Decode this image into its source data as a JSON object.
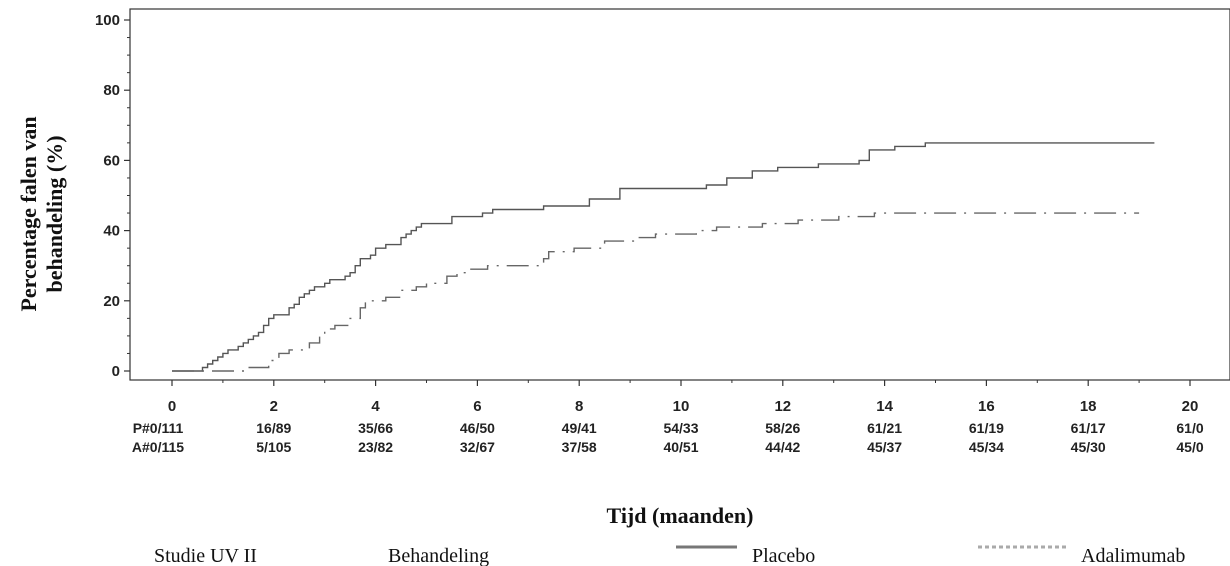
{
  "chart_data": {
    "type": "line",
    "ylabel_line1": "Percentage falen van",
    "ylabel_line2": "behandeling (%)",
    "xlabel": "Tijd (maanden)",
    "xlim": [
      0,
      20
    ],
    "ylim": [
      0,
      100
    ],
    "x_ticks": [
      "0",
      "2",
      "4",
      "6",
      "8",
      "10",
      "12",
      "14",
      "16",
      "18",
      "20"
    ],
    "y_ticks": [
      "0",
      "20",
      "40",
      "60",
      "80",
      "100"
    ],
    "risk_table": {
      "placebo": [
        "P#0/111",
        "16/89",
        "35/66",
        "46/50",
        "49/41",
        "54/33",
        "58/26",
        "61/21",
        "61/19",
        "61/17",
        "61/0"
      ],
      "adalimumab": [
        "A#0/115",
        "5/105",
        "23/82",
        "32/67",
        "37/58",
        "40/51",
        "44/42",
        "45/37",
        "45/34",
        "45/30",
        "45/0"
      ]
    },
    "series": [
      {
        "name": "Placebo",
        "style": "solid",
        "color": "#555555",
        "points": [
          [
            0,
            0
          ],
          [
            0.6,
            0
          ],
          [
            0.6,
            1
          ],
          [
            0.7,
            1
          ],
          [
            0.7,
            2
          ],
          [
            0.8,
            2
          ],
          [
            0.8,
            3
          ],
          [
            0.9,
            3
          ],
          [
            0.9,
            4
          ],
          [
            1.0,
            4
          ],
          [
            1.0,
            5
          ],
          [
            1.1,
            5
          ],
          [
            1.1,
            6
          ],
          [
            1.3,
            6
          ],
          [
            1.3,
            7
          ],
          [
            1.4,
            7
          ],
          [
            1.4,
            8
          ],
          [
            1.5,
            8
          ],
          [
            1.5,
            9
          ],
          [
            1.6,
            9
          ],
          [
            1.6,
            10
          ],
          [
            1.7,
            10
          ],
          [
            1.7,
            11
          ],
          [
            1.8,
            11
          ],
          [
            1.8,
            13
          ],
          [
            1.9,
            13
          ],
          [
            1.9,
            15
          ],
          [
            2.0,
            15
          ],
          [
            2.0,
            16
          ],
          [
            2.3,
            16
          ],
          [
            2.3,
            18
          ],
          [
            2.4,
            18
          ],
          [
            2.4,
            19
          ],
          [
            2.5,
            19
          ],
          [
            2.5,
            21
          ],
          [
            2.6,
            21
          ],
          [
            2.6,
            22
          ],
          [
            2.7,
            22
          ],
          [
            2.7,
            23
          ],
          [
            2.8,
            23
          ],
          [
            2.8,
            24
          ],
          [
            3.0,
            24
          ],
          [
            3.0,
            25
          ],
          [
            3.1,
            25
          ],
          [
            3.1,
            26
          ],
          [
            3.4,
            26
          ],
          [
            3.4,
            27
          ],
          [
            3.5,
            27
          ],
          [
            3.5,
            28
          ],
          [
            3.6,
            28
          ],
          [
            3.6,
            30
          ],
          [
            3.7,
            30
          ],
          [
            3.7,
            32
          ],
          [
            3.9,
            32
          ],
          [
            3.9,
            33
          ],
          [
            4.0,
            33
          ],
          [
            4.0,
            35
          ],
          [
            4.2,
            35
          ],
          [
            4.2,
            36
          ],
          [
            4.5,
            36
          ],
          [
            4.5,
            38
          ],
          [
            4.6,
            38
          ],
          [
            4.6,
            39
          ],
          [
            4.7,
            39
          ],
          [
            4.7,
            40
          ],
          [
            4.8,
            40
          ],
          [
            4.8,
            41
          ],
          [
            4.9,
            41
          ],
          [
            4.9,
            42
          ],
          [
            5.5,
            42
          ],
          [
            5.5,
            44
          ],
          [
            6.1,
            44
          ],
          [
            6.1,
            45
          ],
          [
            6.3,
            45
          ],
          [
            6.3,
            46
          ],
          [
            7.3,
            46
          ],
          [
            7.3,
            47
          ],
          [
            8.2,
            47
          ],
          [
            8.2,
            49
          ],
          [
            8.8,
            49
          ],
          [
            8.8,
            52
          ],
          [
            10.5,
            52
          ],
          [
            10.5,
            53
          ],
          [
            10.9,
            53
          ],
          [
            10.9,
            55
          ],
          [
            11.4,
            55
          ],
          [
            11.4,
            57
          ],
          [
            11.9,
            57
          ],
          [
            11.9,
            58
          ],
          [
            12.7,
            58
          ],
          [
            12.7,
            59
          ],
          [
            13.5,
            59
          ],
          [
            13.5,
            60
          ],
          [
            13.7,
            60
          ],
          [
            13.7,
            63
          ],
          [
            14.2,
            63
          ],
          [
            14.2,
            64
          ],
          [
            14.8,
            64
          ],
          [
            14.8,
            65
          ],
          [
            18.0,
            65
          ],
          [
            18.0,
            65
          ],
          [
            19.3,
            65
          ]
        ]
      },
      {
        "name": "Adalimumab",
        "style": "dashed",
        "color": "#666666",
        "points": [
          [
            0,
            0
          ],
          [
            1.4,
            0
          ],
          [
            1.4,
            1
          ],
          [
            1.9,
            1
          ],
          [
            1.9,
            3
          ],
          [
            2.1,
            3
          ],
          [
            2.1,
            5
          ],
          [
            2.3,
            5
          ],
          [
            2.3,
            6
          ],
          [
            2.7,
            6
          ],
          [
            2.7,
            8
          ],
          [
            2.9,
            8
          ],
          [
            2.9,
            10
          ],
          [
            3.0,
            10
          ],
          [
            3.0,
            12
          ],
          [
            3.2,
            12
          ],
          [
            3.2,
            13
          ],
          [
            3.5,
            13
          ],
          [
            3.5,
            15
          ],
          [
            3.7,
            15
          ],
          [
            3.7,
            18
          ],
          [
            3.8,
            18
          ],
          [
            3.8,
            20
          ],
          [
            4.2,
            20
          ],
          [
            4.2,
            21
          ],
          [
            4.5,
            21
          ],
          [
            4.5,
            23
          ],
          [
            4.8,
            23
          ],
          [
            4.8,
            24
          ],
          [
            5.0,
            24
          ],
          [
            5.0,
            25
          ],
          [
            5.4,
            25
          ],
          [
            5.4,
            27
          ],
          [
            5.6,
            27
          ],
          [
            5.6,
            28
          ],
          [
            5.8,
            28
          ],
          [
            5.8,
            29
          ],
          [
            6.2,
            29
          ],
          [
            6.2,
            30
          ],
          [
            7.3,
            30
          ],
          [
            7.3,
            32
          ],
          [
            7.4,
            32
          ],
          [
            7.4,
            34
          ],
          [
            7.9,
            34
          ],
          [
            7.9,
            35
          ],
          [
            8.5,
            35
          ],
          [
            8.5,
            37
          ],
          [
            9.1,
            37
          ],
          [
            9.1,
            38
          ],
          [
            9.5,
            38
          ],
          [
            9.5,
            39
          ],
          [
            10.3,
            39
          ],
          [
            10.3,
            40
          ],
          [
            10.7,
            40
          ],
          [
            10.7,
            41
          ],
          [
            11.6,
            41
          ],
          [
            11.6,
            42
          ],
          [
            12.3,
            42
          ],
          [
            12.3,
            43
          ],
          [
            13.1,
            43
          ],
          [
            13.1,
            44
          ],
          [
            13.8,
            44
          ],
          [
            13.8,
            45
          ],
          [
            16.0,
            45
          ],
          [
            16.0,
            45
          ],
          [
            19.0,
            45
          ]
        ]
      }
    ]
  },
  "footer": {
    "study": "Studie UV II",
    "treatment": "Behandeling",
    "placebo": "Placebo",
    "adalimumab": "Adalimumab"
  }
}
